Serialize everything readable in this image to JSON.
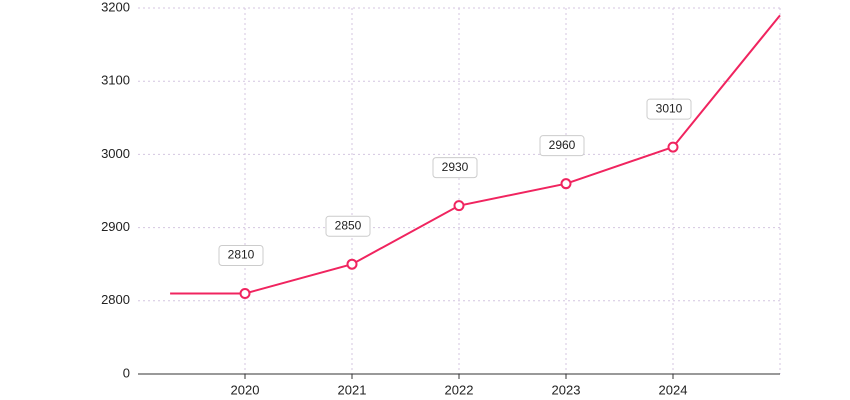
{
  "chart_data": {
    "type": "line",
    "x": [
      2019.3,
      2020,
      2021,
      2022,
      2023,
      2024,
      2025
    ],
    "series": [
      {
        "color": "#f0245f",
        "values": [
          2810,
          2810,
          2850,
          2930,
          2960,
          3010,
          3190
        ]
      }
    ],
    "xlim": [
      2019,
      2025
    ],
    "xticks": [
      2020,
      2021,
      2022,
      2023,
      2024
    ],
    "ylim": [
      0,
      3200
    ],
    "yticks": [
      0,
      2800,
      2900,
      3000,
      3100,
      3200
    ],
    "axis_break": true,
    "grid": true
  }
}
